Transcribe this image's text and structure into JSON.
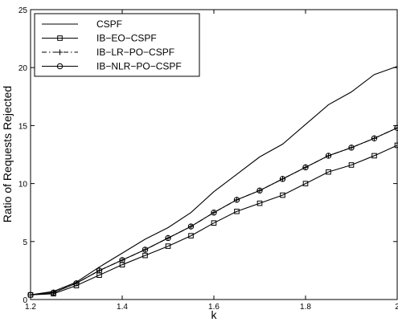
{
  "chart_data": {
    "type": "line",
    "xlabel": "k",
    "ylabel": "Ratio of Requests Rejected",
    "xlim": [
      1.2,
      2.0
    ],
    "ylim": [
      0,
      25
    ],
    "xticks": [
      "1.2",
      "1.4",
      "1.6",
      "1.8",
      "2"
    ],
    "xtick_values": [
      1.2,
      1.4,
      1.6,
      1.8,
      2.0
    ],
    "yticks": [
      "0",
      "5",
      "10",
      "15",
      "20",
      "25"
    ],
    "ytick_values": [
      0,
      5,
      10,
      15,
      20,
      25
    ],
    "grid": false,
    "legend_position": "top-left",
    "x": [
      1.2,
      1.25,
      1.3,
      1.35,
      1.4,
      1.45,
      1.5,
      1.55,
      1.6,
      1.65,
      1.7,
      1.75,
      1.8,
      1.85,
      1.9,
      1.95,
      2.0
    ],
    "series": [
      {
        "name": "CSPF",
        "line": "solid",
        "marker": "none",
        "values": [
          0.4,
          0.7,
          1.5,
          2.8,
          4.0,
          5.2,
          6.2,
          7.5,
          9.3,
          10.8,
          12.3,
          13.4,
          15.1,
          16.8,
          17.9,
          19.4,
          20.1
        ]
      },
      {
        "name": "IB−EO−CSPF",
        "line": "solid",
        "marker": "square",
        "values": [
          0.4,
          0.5,
          1.2,
          2.1,
          3.0,
          3.8,
          4.6,
          5.5,
          6.6,
          7.6,
          8.3,
          9.0,
          10.0,
          11.0,
          11.6,
          12.4,
          13.3
        ]
      },
      {
        "name": "IB−LR−PO−CSPF",
        "line": "dashdot",
        "marker": "plus",
        "values": [
          0.4,
          0.6,
          1.4,
          2.5,
          3.4,
          4.3,
          5.3,
          6.3,
          7.5,
          8.6,
          9.4,
          10.4,
          11.4,
          12.4,
          13.1,
          13.9,
          14.8
        ]
      },
      {
        "name": "IB−NLR−PO−CSPF",
        "line": "solid",
        "marker": "circle",
        "values": [
          0.4,
          0.6,
          1.4,
          2.5,
          3.4,
          4.3,
          5.3,
          6.3,
          7.5,
          8.6,
          9.4,
          10.4,
          11.4,
          12.4,
          13.1,
          13.9,
          14.8
        ]
      }
    ]
  }
}
